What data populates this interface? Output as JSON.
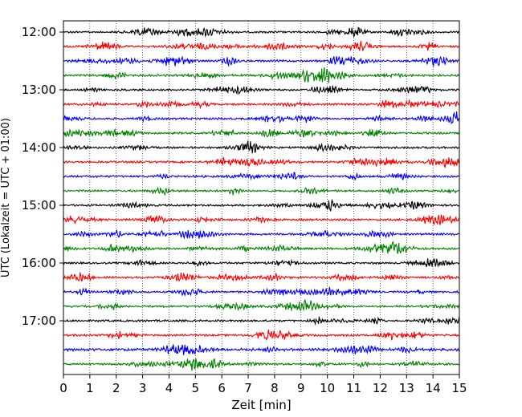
{
  "chart_data": {
    "type": "line",
    "title": "",
    "xlabel": "Zeit  [min]",
    "ylabel": "UTC (Lokalzeit = UTC + 01:00)",
    "xlim": [
      0,
      15
    ],
    "x_ticks": [
      "0",
      "1",
      "2",
      "3",
      "4",
      "5",
      "6",
      "7",
      "8",
      "9",
      "10",
      "11",
      "12",
      "13",
      "14",
      "15"
    ],
    "y_ticks": [
      "12:00",
      "13:00",
      "14:00",
      "15:00",
      "16:00",
      "17:00"
    ],
    "grid": "vertical dotted at each minute",
    "trace_interval_min": 15,
    "trace_count": 24,
    "trace_colors": [
      "#000000",
      "#ff0000",
      "#0000ff",
      "#008000"
    ],
    "traces": [
      {
        "start": "12:00",
        "color": "#000000"
      },
      {
        "start": "12:15",
        "color": "#ff0000"
      },
      {
        "start": "12:30",
        "color": "#0000ff"
      },
      {
        "start": "12:45",
        "color": "#008000"
      },
      {
        "start": "13:00",
        "color": "#000000"
      },
      {
        "start": "13:15",
        "color": "#ff0000"
      },
      {
        "start": "13:30",
        "color": "#0000ff"
      },
      {
        "start": "13:45",
        "color": "#008000"
      },
      {
        "start": "14:00",
        "color": "#000000"
      },
      {
        "start": "14:15",
        "color": "#ff0000"
      },
      {
        "start": "14:30",
        "color": "#0000ff"
      },
      {
        "start": "14:45",
        "color": "#008000"
      },
      {
        "start": "15:00",
        "color": "#000000"
      },
      {
        "start": "15:15",
        "color": "#ff0000"
      },
      {
        "start": "15:30",
        "color": "#0000ff"
      },
      {
        "start": "15:45",
        "color": "#008000"
      },
      {
        "start": "16:00",
        "color": "#000000"
      },
      {
        "start": "16:15",
        "color": "#ff0000"
      },
      {
        "start": "16:30",
        "color": "#0000ff"
      },
      {
        "start": "16:45",
        "color": "#008000"
      },
      {
        "start": "17:00",
        "color": "#000000"
      },
      {
        "start": "17:15",
        "color": "#ff0000"
      },
      {
        "start": "17:30",
        "color": "#0000ff"
      },
      {
        "start": "17:45",
        "color": "#008000"
      }
    ]
  }
}
